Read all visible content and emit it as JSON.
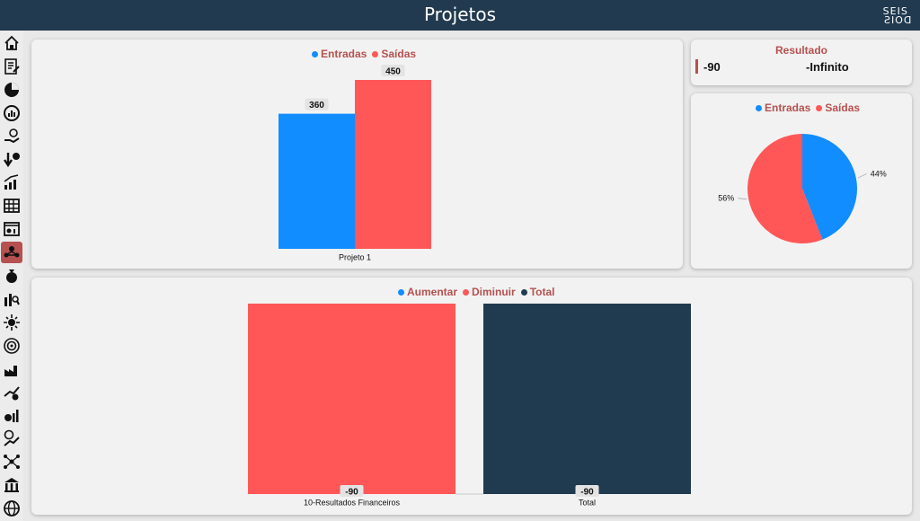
{
  "header": {
    "title": "Projetos",
    "logo_top": "SEIS",
    "logo_bottom": "DOIS"
  },
  "sidebar": {
    "items": [
      {
        "icon": "home-icon",
        "active": false
      },
      {
        "icon": "document-edit-icon",
        "active": false
      },
      {
        "icon": "pie-chart-icon",
        "active": false
      },
      {
        "icon": "gauge-icon",
        "active": false
      },
      {
        "icon": "hand-money-icon",
        "active": false
      },
      {
        "icon": "down-percent-icon",
        "active": false
      },
      {
        "icon": "growth-chart-icon",
        "active": false
      },
      {
        "icon": "table-icon",
        "active": false
      },
      {
        "icon": "dashboard-icon",
        "active": false
      },
      {
        "icon": "people-network-icon",
        "active": true
      },
      {
        "icon": "money-bag-icon",
        "active": false
      },
      {
        "icon": "bar-search-icon",
        "active": false
      },
      {
        "icon": "sun-gear-icon",
        "active": false
      },
      {
        "icon": "target-icon",
        "active": false
      },
      {
        "icon": "factory-icon",
        "active": false
      },
      {
        "icon": "trend-gear-icon",
        "active": false
      },
      {
        "icon": "finance-bars-icon",
        "active": false
      },
      {
        "icon": "dollar-trend-icon",
        "active": false
      },
      {
        "icon": "network-icon",
        "active": false
      },
      {
        "icon": "bank-icon",
        "active": false
      },
      {
        "icon": "globe-icon",
        "active": false
      }
    ]
  },
  "colors": {
    "entradas": "#118dff",
    "saidas": "#ff5757",
    "total": "#203a50",
    "accent": "#b5514f"
  },
  "resultado": {
    "title": "Resultado",
    "value": "-90",
    "ratio": "-Infinito"
  },
  "chart_data": [
    {
      "type": "bar",
      "categories": [
        "Projeto 1"
      ],
      "series": [
        {
          "name": "Entradas",
          "values": [
            360
          ],
          "color": "#118dff"
        },
        {
          "name": "Saídas",
          "values": [
            450
          ],
          "color": "#ff5757"
        }
      ],
      "legend": "top-center",
      "ylim": [
        0,
        450
      ]
    },
    {
      "type": "pie",
      "legend_labels": [
        "Entradas",
        "Saídas"
      ],
      "slices": [
        {
          "name": "Entradas",
          "value": 44,
          "label": "44%",
          "color": "#118dff"
        },
        {
          "name": "Saídas",
          "value": 56,
          "label": "56%",
          "color": "#ff5757"
        }
      ],
      "legend": "top-center"
    },
    {
      "type": "bar",
      "categories": [
        "10-Resultados Financeiros",
        "Total"
      ],
      "legend_labels": [
        "Aumentar",
        "Diminuir",
        "Total"
      ],
      "legend_colors": [
        "#118dff",
        "#ff5757",
        "#203a50"
      ],
      "values": [
        -90,
        -90
      ],
      "labels": [
        "-90",
        "-90"
      ],
      "colors": [
        "#ff5757",
        "#203a50"
      ],
      "legend": "top-center"
    }
  ]
}
